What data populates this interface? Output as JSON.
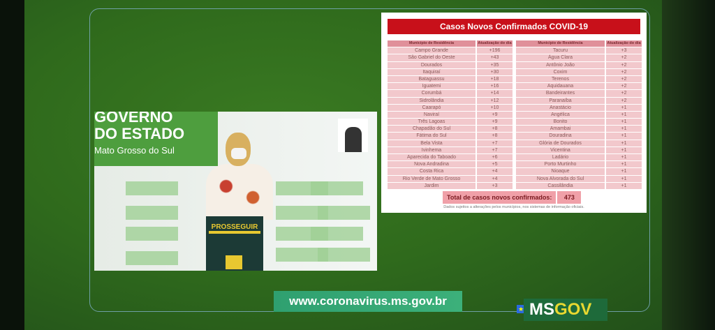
{
  "table": {
    "title": "Casos Novos Confirmados COVID-19",
    "col_municipio": "Município de Residência",
    "col_atualizacao": "Atualização do dia",
    "left": [
      [
        "Campo Grande",
        "+196"
      ],
      [
        "São Gabriel do Oeste",
        "+43"
      ],
      [
        "Dourados",
        "+35"
      ],
      [
        "Itaquiraí",
        "+30"
      ],
      [
        "Bataguassu",
        "+18"
      ],
      [
        "Iguatemi",
        "+16"
      ],
      [
        "Corumbá",
        "+14"
      ],
      [
        "Sidrolândia",
        "+12"
      ],
      [
        "Caarapó",
        "+10"
      ],
      [
        "Naviraí",
        "+9"
      ],
      [
        "Três Lagoas",
        "+9"
      ],
      [
        "Chapadão do Sul",
        "+8"
      ],
      [
        "Fátima do Sul",
        "+8"
      ],
      [
        "Bela Vista",
        "+7"
      ],
      [
        "Ivinhema",
        "+7"
      ],
      [
        "Aparecida do Taboado",
        "+6"
      ],
      [
        "Nova Andradina",
        "+5"
      ],
      [
        "Costa Rica",
        "+4"
      ],
      [
        "Rio Verde de Mato Grosso",
        "+4"
      ],
      [
        "Jardim",
        "+3"
      ]
    ],
    "right": [
      [
        "Tacuru",
        "+3"
      ],
      [
        "Água Clara",
        "+2"
      ],
      [
        "Antônio João",
        "+2"
      ],
      [
        "Coxim",
        "+2"
      ],
      [
        "Terenos",
        "+2"
      ],
      [
        "Aquidauana",
        "+2"
      ],
      [
        "Bandeirantes",
        "+2"
      ],
      [
        "Paranaíba",
        "+2"
      ],
      [
        "Anastácio",
        "+1"
      ],
      [
        "Angélica",
        "+1"
      ],
      [
        "Bonito",
        "+1"
      ],
      [
        "Amambai",
        "+1"
      ],
      [
        "Douradina",
        "+1"
      ],
      [
        "Glória de Dourados",
        "+1"
      ],
      [
        "Vicentina",
        "+1"
      ],
      [
        "Ladário",
        "+1"
      ],
      [
        "Porto Murtinho",
        "+1"
      ],
      [
        "Nioaque",
        "+1"
      ],
      [
        "Nova Alvorada do Sul",
        "+1"
      ],
      [
        "Cassilândia",
        "+1"
      ]
    ],
    "total_label": "Total de casos novos confirmados:",
    "total_value": "473",
    "note": "Dados sujeitos a alterações pelos municípios, nos sistemas de informação oficiais."
  },
  "video": {
    "banner_line1": "GOVERNO",
    "banner_line2": "DO ESTADO",
    "banner_line3": "Mato Grosso do Sul",
    "podium": "PROSSEGUIR"
  },
  "footer": {
    "url": "www.coronavirus.ms.gov.br",
    "logo_ms": "MS",
    "logo_gov": "GOV"
  },
  "colors": {
    "background": "#2f6a1c",
    "title_red": "#c8101a",
    "row_pink": "#f2c8cc"
  }
}
